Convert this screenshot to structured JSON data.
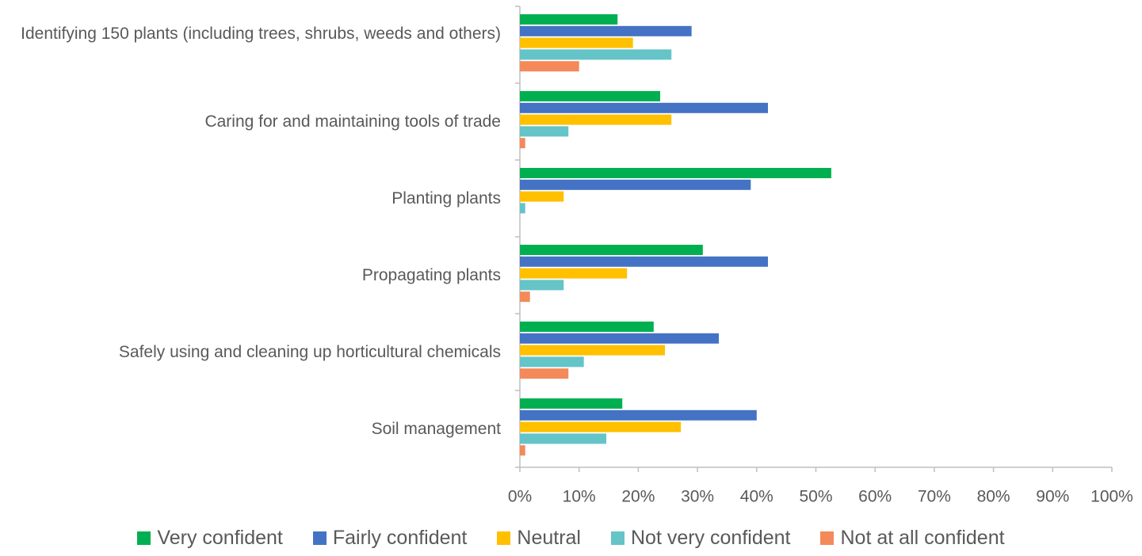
{
  "chart_data": {
    "type": "bar",
    "orientation": "horizontal",
    "categories": [
      "Identifying 150 plants (including trees, shrubs, weeds and others)",
      "Caring for and maintaining tools of trade",
      "Planting plants",
      "Propagating plants",
      "Safely using and cleaning up horticultural chemicals",
      "Soil management"
    ],
    "series": [
      {
        "name": "Very confident",
        "color": "#00b050",
        "values": [
          16.5,
          23.7,
          52.6,
          30.9,
          22.6,
          17.3
        ]
      },
      {
        "name": "Fairly confident",
        "color": "#4472c4",
        "values": [
          29.0,
          41.9,
          39.0,
          41.9,
          33.6,
          40.0
        ]
      },
      {
        "name": "Neutral",
        "color": "#ffc000",
        "values": [
          19.1,
          25.6,
          7.4,
          18.1,
          24.5,
          27.2
        ]
      },
      {
        "name": "Not very confident",
        "color": "#64c4c8",
        "values": [
          25.6,
          8.2,
          0.9,
          7.4,
          10.8,
          14.6
        ]
      },
      {
        "name": "Not at all confident",
        "color": "#f4895a",
        "values": [
          10.0,
          0.9,
          0,
          1.7,
          8.2,
          0.9
        ]
      }
    ],
    "xlim": [
      0,
      100
    ],
    "xticks": [
      {
        "value": 0,
        "label": "0%"
      },
      {
        "value": 10,
        "label": "10%"
      },
      {
        "value": 20,
        "label": "20%"
      },
      {
        "value": 30,
        "label": "30%"
      },
      {
        "value": 40,
        "label": "40%"
      },
      {
        "value": 50,
        "label": "50%"
      },
      {
        "value": 60,
        "label": "60%"
      },
      {
        "value": 70,
        "label": "70%"
      },
      {
        "value": 80,
        "label": "80%"
      },
      {
        "value": 90,
        "label": "90%"
      },
      {
        "value": 100,
        "label": "100%"
      }
    ],
    "grid": false,
    "legend": "bottom"
  }
}
